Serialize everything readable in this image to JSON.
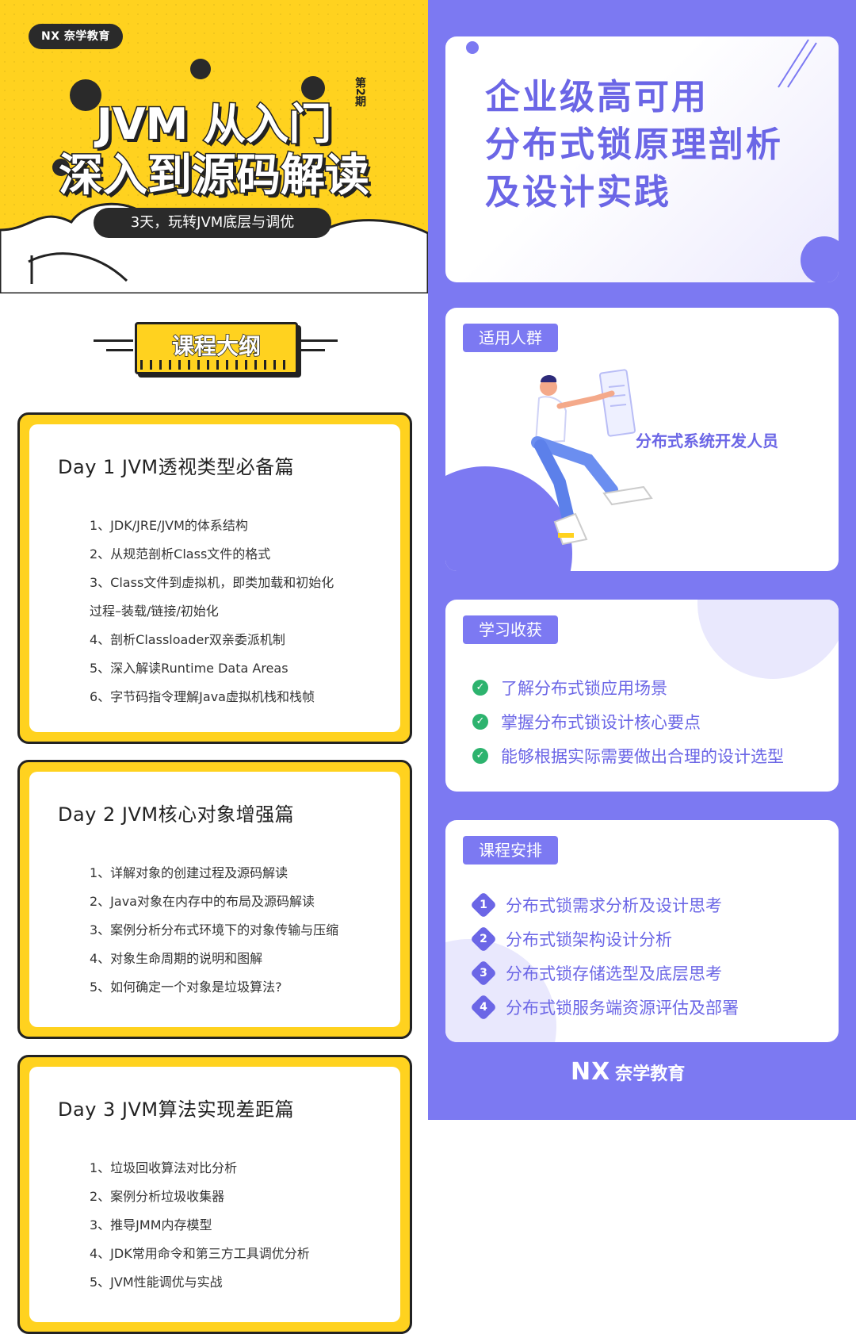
{
  "brand": {
    "logo_mark": "NX",
    "logo_name": "奈学教育",
    "footer_slogan": ""
  },
  "hero": {
    "title_line1": "JVM 从入门",
    "title_line2": "深入到源码解读",
    "issue_badge": "第2期",
    "subtitle": "3天，玩转JVM底层与调优"
  },
  "outline": {
    "banner": "课程大纲"
  },
  "days": [
    {
      "title": "Day 1 JVM透视类型必备篇",
      "items": [
        "1、JDK/JRE/JVM的体系结构",
        "2、从规范剖析Class文件的格式",
        "3、Class文件到虚拟机，即类加载和初始化",
        "     过程–装载/链接/初始化",
        "4、剖析Classloader双亲委派机制",
        "5、深入解读Runtime Data Areas",
        "6、字节码指令理解Java虚拟机栈和栈帧"
      ]
    },
    {
      "title": "Day 2 JVM核心对象增强篇",
      "items": [
        "1、详解对象的创建过程及源码解读",
        "2、Java对象在内存中的布局及源码解读",
        "3、案例分析分布式环境下的对象传输与压缩",
        "4、对象生命周期的说明和图解",
        "5、如何确定一个对象是垃圾算法?"
      ]
    },
    {
      "title": "Day 3 JVM算法实现差距篇",
      "items": [
        "1、垃圾回收算法对比分析",
        "2、案例分析垃圾收集器",
        "3、推导JMM内存模型",
        "4、JDK常用命令和第三方工具调优分析",
        "5、JVM性能调优与实战"
      ]
    }
  ],
  "right": {
    "headline": [
      "企业级高可用",
      "分布式锁原理剖析",
      "及设计实践"
    ],
    "audience": {
      "tag": "适用人群",
      "text": "分布式系统开发人员"
    },
    "gains": {
      "tag": "学习收获",
      "items": [
        "了解分布式锁应用场景",
        "掌握分布式锁设计核心要点",
        "能够根据实际需要做出合理的设计选型"
      ]
    },
    "schedule": {
      "tag": "课程安排",
      "items": [
        {
          "num": "1",
          "text": "分布式锁需求分析及设计思考"
        },
        {
          "num": "2",
          "text": "分布式锁架构设计分析"
        },
        {
          "num": "3",
          "text": "分布式锁存储选型及底层思考"
        },
        {
          "num": "4",
          "text": "分布式锁服务端资源评估及部署"
        }
      ]
    }
  },
  "colors": {
    "yellow": "#ffd21f",
    "purple": "#7c79f2",
    "purple_text": "#6b66e6",
    "green_check": "#2db36e"
  },
  "icons": [
    "check-icon",
    "number-diamond-icon",
    "person-illustration"
  ]
}
